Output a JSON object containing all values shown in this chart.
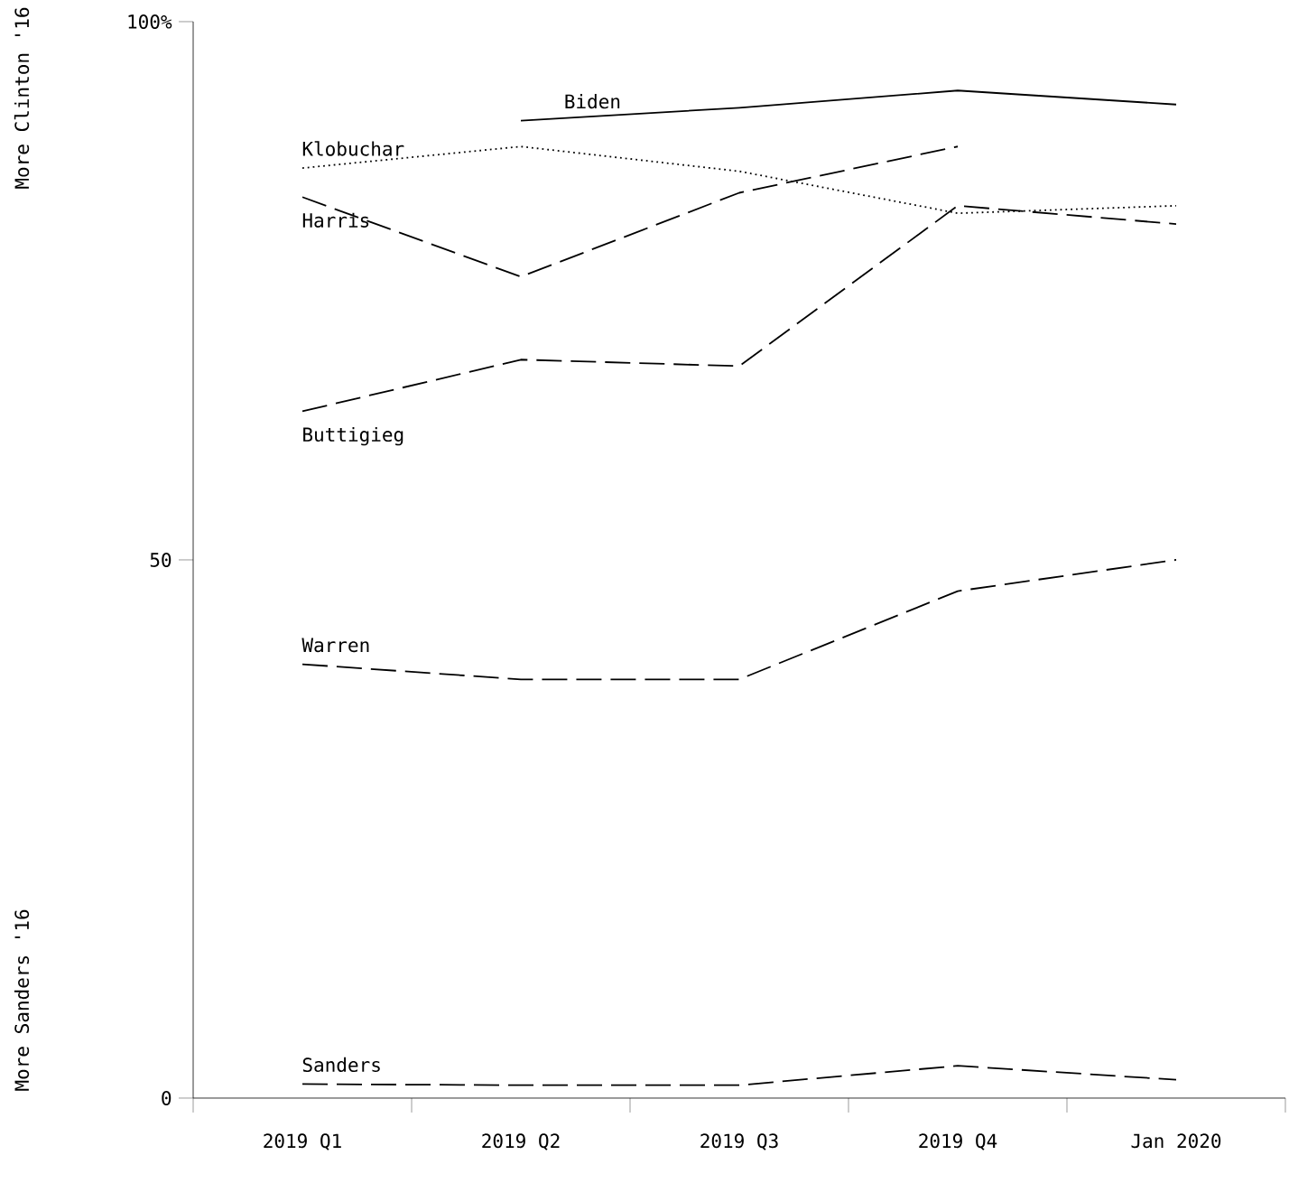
{
  "chart_data": {
    "type": "line",
    "categories": [
      "2019 Q1",
      "2019 Q2",
      "2019 Q3",
      "2019 Q4",
      "Jan 2020"
    ],
    "series": [
      {
        "name": "Biden",
        "color": "#000000",
        "line_style": "solid",
        "values": [
          null,
          90.8,
          92,
          93.6,
          92.3
        ]
      },
      {
        "name": "Klobuchar",
        "color": "#000000",
        "line_style": "dotted",
        "values": [
          86.4,
          88.4,
          86.1,
          82.2,
          82.9
        ]
      },
      {
        "name": "Harris",
        "color": "#000000",
        "line_style": "dashed",
        "values": [
          83.7,
          76.3,
          84.1,
          88.4,
          null
        ]
      },
      {
        "name": "Buttigieg",
        "color": "#000000",
        "line_style": "dashed",
        "values": [
          63.8,
          68.6,
          68,
          82.9,
          81.2
        ]
      },
      {
        "name": "Warren",
        "color": "#000000",
        "line_style": "dashed",
        "values": [
          40.3,
          38.9,
          38.9,
          47.1,
          50
        ]
      },
      {
        "name": "Sanders",
        "color": "#000000",
        "line_style": "dashed",
        "values": [
          1.3,
          1.2,
          1.2,
          3.0,
          1.7
        ]
      }
    ],
    "ylim": [
      0,
      100
    ],
    "yticks": [
      0,
      50,
      {
        "value": 100,
        "label": "100%"
      }
    ],
    "annotations": [
      "More Clinton '16",
      "More Sanders '16"
    ],
    "grid": false
  }
}
